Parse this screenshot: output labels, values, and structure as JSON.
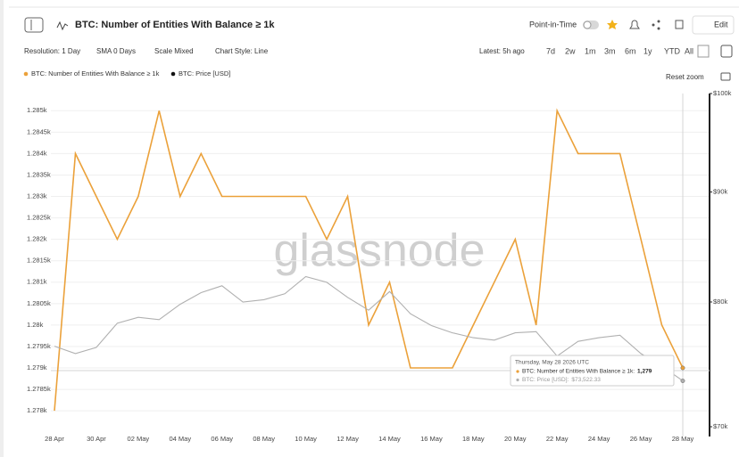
{
  "header": {
    "title": "BTC: Number of Entities With Balance ≥ 1k",
    "point_in_time": "Point-in-Time",
    "edit": "Edit"
  },
  "toolbar": {
    "resolution": "Resolution: 1 Day",
    "sma": "SMA 0 Days",
    "scale": "Scale Mixed",
    "style": "Chart Style: Line",
    "latest": "Latest: 5h ago",
    "ranges": [
      "7d",
      "2w",
      "1m",
      "3m",
      "6m",
      "1y",
      "YTD",
      "All"
    ],
    "reset_zoom": "Reset zoom"
  },
  "watermark": "glassnode",
  "tooltip": {
    "date": "Thursday, May 28 2026 UTC",
    "items": [
      {
        "label": "BTC: Number of Entities With Balance ≥ 1k:",
        "value": "1,279"
      },
      {
        "label": "BTC: Price [USD]:",
        "value": "$73,522.33"
      }
    ]
  },
  "chart_data": {
    "type": "line",
    "categories": [
      "28 Apr",
      null,
      "30 Apr",
      null,
      "02 May",
      null,
      "04 May",
      null,
      "06 May",
      null,
      "08 May",
      null,
      "10 May",
      null,
      "12 May",
      null,
      "14 May",
      null,
      "16 May",
      null,
      "18 May",
      null,
      "20 May",
      null,
      "22 May",
      null,
      "24 May",
      null,
      "26 May",
      null,
      "28 May"
    ],
    "series": [
      {
        "name": "BTC: Number of Entities With Balance ≥ 1k",
        "color": "#eba13a",
        "values": [
          1278,
          1284,
          1283,
          1282,
          1283,
          1285,
          1283,
          1284,
          1283,
          1283,
          1283,
          1283,
          1283,
          1282,
          1283,
          1280,
          1281,
          1279,
          1279,
          1279,
          1280,
          1281,
          1282,
          1280,
          1285,
          1284,
          1284,
          1284,
          1282,
          1280,
          1279
        ]
      },
      {
        "name": "BTC: Price [USD]",
        "color": "#b0b0b0",
        "legend_color": "#111111",
        "axis": "y2",
        "values": [
          76300,
          75700,
          76200,
          78200,
          78700,
          78500,
          79800,
          80800,
          81400,
          80000,
          80200,
          80700,
          82200,
          81700,
          80400,
          79300,
          80900,
          79000,
          78000,
          77400,
          77000,
          76800,
          77400,
          77500,
          75500,
          76700,
          77000,
          77200,
          75700,
          74700,
          73522.33
        ]
      }
    ],
    "ylim": [
      1277.4,
      1285.4
    ],
    "yticks": [
      {
        "value": 1278,
        "label": "1.278k"
      },
      {
        "value": 1278.5,
        "label": "1.2785k"
      },
      {
        "value": 1279,
        "label": "1.279k"
      },
      {
        "value": 1279.5,
        "label": "1.2795k"
      },
      {
        "value": 1280,
        "label": "1.28k"
      },
      {
        "value": 1280.5,
        "label": "1.2805k"
      },
      {
        "value": 1281,
        "label": "1.281k"
      },
      {
        "value": 1281.5,
        "label": "1.2815k"
      },
      {
        "value": 1282,
        "label": "1.282k"
      },
      {
        "value": 1282.5,
        "label": "1.2825k"
      },
      {
        "value": 1283,
        "label": "1.283k"
      },
      {
        "value": 1283.5,
        "label": "1.2835k"
      },
      {
        "value": 1284,
        "label": "1.284k"
      },
      {
        "value": 1284.5,
        "label": "1.2845k"
      },
      {
        "value": 1285,
        "label": "1.285k"
      }
    ],
    "y2lim": [
      70000,
      100000
    ],
    "y2log": true,
    "y2ticks": [
      {
        "value": 70000,
        "label": "$70k"
      },
      {
        "value": 80000,
        "label": "$80k"
      },
      {
        "value": 90000,
        "label": "$90k"
      },
      {
        "value": 100000,
        "label": "$100k"
      }
    ],
    "grid": true
  }
}
